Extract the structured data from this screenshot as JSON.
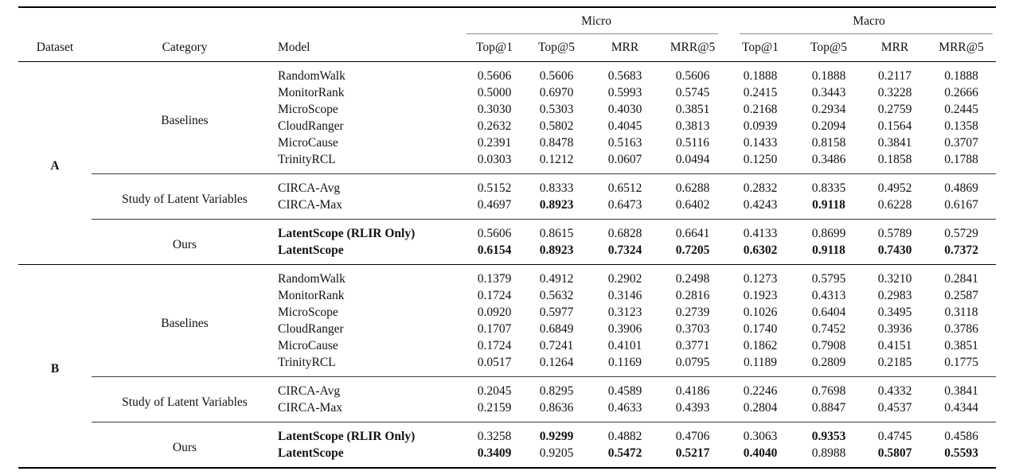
{
  "table": {
    "header": {
      "dataset": "Dataset",
      "category": "Category",
      "model": "Model",
      "groups": [
        {
          "label": "Micro",
          "metrics": [
            "Top@1",
            "Top@5",
            "MRR",
            "MRR@5"
          ]
        },
        {
          "label": "Macro",
          "metrics": [
            "Top@1",
            "Top@5",
            "MRR",
            "MRR@5"
          ]
        }
      ]
    },
    "datasets": [
      {
        "name": "A",
        "groups": [
          {
            "category": "Baselines",
            "rows": [
              {
                "model": "RandomWalk",
                "bold_model": false,
                "values": [
                  "0.5606",
                  "0.5606",
                  "0.5683",
                  "0.5606",
                  "0.1888",
                  "0.1888",
                  "0.2117",
                  "0.1888"
                ],
                "bold": [
                  false,
                  false,
                  false,
                  false,
                  false,
                  false,
                  false,
                  false
                ]
              },
              {
                "model": "MonitorRank",
                "bold_model": false,
                "values": [
                  "0.5000",
                  "0.6970",
                  "0.5993",
                  "0.5745",
                  "0.2415",
                  "0.3443",
                  "0.3228",
                  "0.2666"
                ],
                "bold": [
                  false,
                  false,
                  false,
                  false,
                  false,
                  false,
                  false,
                  false
                ]
              },
              {
                "model": "MicroScope",
                "bold_model": false,
                "values": [
                  "0.3030",
                  "0.5303",
                  "0.4030",
                  "0.3851",
                  "0.2168",
                  "0.2934",
                  "0.2759",
                  "0.2445"
                ],
                "bold": [
                  false,
                  false,
                  false,
                  false,
                  false,
                  false,
                  false,
                  false
                ]
              },
              {
                "model": "CloudRanger",
                "bold_model": false,
                "values": [
                  "0.2632",
                  "0.5802",
                  "0.4045",
                  "0.3813",
                  "0.0939",
                  "0.2094",
                  "0.1564",
                  "0.1358"
                ],
                "bold": [
                  false,
                  false,
                  false,
                  false,
                  false,
                  false,
                  false,
                  false
                ]
              },
              {
                "model": "MicroCause",
                "bold_model": false,
                "values": [
                  "0.2391",
                  "0.8478",
                  "0.5163",
                  "0.5116",
                  "0.1433",
                  "0.8158",
                  "0.3841",
                  "0.3707"
                ],
                "bold": [
                  false,
                  false,
                  false,
                  false,
                  false,
                  false,
                  false,
                  false
                ]
              },
              {
                "model": "TrinityRCL",
                "bold_model": false,
                "values": [
                  "0.0303",
                  "0.1212",
                  "0.0607",
                  "0.0494",
                  "0.1250",
                  "0.3486",
                  "0.1858",
                  "0.1788"
                ],
                "bold": [
                  false,
                  false,
                  false,
                  false,
                  false,
                  false,
                  false,
                  false
                ]
              }
            ]
          },
          {
            "category": "Study of Latent Variables",
            "rows": [
              {
                "model": "CIRCA-Avg",
                "bold_model": false,
                "values": [
                  "0.5152",
                  "0.8333",
                  "0.6512",
                  "0.6288",
                  "0.2832",
                  "0.8335",
                  "0.4952",
                  "0.4869"
                ],
                "bold": [
                  false,
                  false,
                  false,
                  false,
                  false,
                  false,
                  false,
                  false
                ]
              },
              {
                "model": "CIRCA-Max",
                "bold_model": false,
                "values": [
                  "0.4697",
                  "0.8923",
                  "0.6473",
                  "0.6402",
                  "0.4243",
                  "0.9118",
                  "0.6228",
                  "0.6167"
                ],
                "bold": [
                  false,
                  true,
                  false,
                  false,
                  false,
                  true,
                  false,
                  false
                ]
              }
            ]
          },
          {
            "category": "Ours",
            "rows": [
              {
                "model": "LatentScope (RLIR Only)",
                "bold_model": true,
                "values": [
                  "0.5606",
                  "0.8615",
                  "0.6828",
                  "0.6641",
                  "0.4133",
                  "0.8699",
                  "0.5789",
                  "0.5729"
                ],
                "bold": [
                  false,
                  false,
                  false,
                  false,
                  false,
                  false,
                  false,
                  false
                ]
              },
              {
                "model": "LatentScope",
                "bold_model": true,
                "values": [
                  "0.6154",
                  "0.8923",
                  "0.7324",
                  "0.7205",
                  "0.6302",
                  "0.9118",
                  "0.7430",
                  "0.7372"
                ],
                "bold": [
                  true,
                  true,
                  true,
                  true,
                  true,
                  true,
                  true,
                  true
                ]
              }
            ]
          }
        ]
      },
      {
        "name": "B",
        "groups": [
          {
            "category": "Baselines",
            "rows": [
              {
                "model": "RandomWalk",
                "bold_model": false,
                "values": [
                  "0.1379",
                  "0.4912",
                  "0.2902",
                  "0.2498",
                  "0.1273",
                  "0.5795",
                  "0.3210",
                  "0.2841"
                ],
                "bold": [
                  false,
                  false,
                  false,
                  false,
                  false,
                  false,
                  false,
                  false
                ]
              },
              {
                "model": "MonitorRank",
                "bold_model": false,
                "values": [
                  "0.1724",
                  "0.5632",
                  "0.3146",
                  "0.2816",
                  "0.1923",
                  "0.4313",
                  "0.2983",
                  "0.2587"
                ],
                "bold": [
                  false,
                  false,
                  false,
                  false,
                  false,
                  false,
                  false,
                  false
                ]
              },
              {
                "model": "MicroScope",
                "bold_model": false,
                "values": [
                  "0.0920",
                  "0.5977",
                  "0.3123",
                  "0.2739",
                  "0.1026",
                  "0.6404",
                  "0.3495",
                  "0.3118"
                ],
                "bold": [
                  false,
                  false,
                  false,
                  false,
                  false,
                  false,
                  false,
                  false
                ]
              },
              {
                "model": "CloudRanger",
                "bold_model": false,
                "values": [
                  "0.1707",
                  "0.6849",
                  "0.3906",
                  "0.3703",
                  "0.1740",
                  "0.7452",
                  "0.3936",
                  "0.3786"
                ],
                "bold": [
                  false,
                  false,
                  false,
                  false,
                  false,
                  false,
                  false,
                  false
                ]
              },
              {
                "model": "MicroCause",
                "bold_model": false,
                "values": [
                  "0.1724",
                  "0.7241",
                  "0.4101",
                  "0.3771",
                  "0.1862",
                  "0.7908",
                  "0.4151",
                  "0.3851"
                ],
                "bold": [
                  false,
                  false,
                  false,
                  false,
                  false,
                  false,
                  false,
                  false
                ]
              },
              {
                "model": "TrinityRCL",
                "bold_model": false,
                "values": [
                  "0.0517",
                  "0.1264",
                  "0.1169",
                  "0.0795",
                  "0.1189",
                  "0.2809",
                  "0.2185",
                  "0.1775"
                ],
                "bold": [
                  false,
                  false,
                  false,
                  false,
                  false,
                  false,
                  false,
                  false
                ]
              }
            ]
          },
          {
            "category": "Study of Latent Variables",
            "rows": [
              {
                "model": "CIRCA-Avg",
                "bold_model": false,
                "values": [
                  "0.2045",
                  "0.8295",
                  "0.4589",
                  "0.4186",
                  "0.2246",
                  "0.7698",
                  "0.4332",
                  "0.3841"
                ],
                "bold": [
                  false,
                  false,
                  false,
                  false,
                  false,
                  false,
                  false,
                  false
                ]
              },
              {
                "model": "CIRCA-Max",
                "bold_model": false,
                "values": [
                  "0.2159",
                  "0.8636",
                  "0.4633",
                  "0.4393",
                  "0.2804",
                  "0.8847",
                  "0.4537",
                  "0.4344"
                ],
                "bold": [
                  false,
                  false,
                  false,
                  false,
                  false,
                  false,
                  false,
                  false
                ]
              }
            ]
          },
          {
            "category": "Ours",
            "rows": [
              {
                "model": "LatentScope (RLIR Only)",
                "bold_model": true,
                "values": [
                  "0.3258",
                  "0.9299",
                  "0.4882",
                  "0.4706",
                  "0.3063",
                  "0.9353",
                  "0.4745",
                  "0.4586"
                ],
                "bold": [
                  false,
                  true,
                  false,
                  false,
                  false,
                  true,
                  false,
                  false
                ]
              },
              {
                "model": "LatentScope",
                "bold_model": true,
                "values": [
                  "0.3409",
                  "0.9205",
                  "0.5472",
                  "0.5217",
                  "0.4040",
                  "0.8988",
                  "0.5807",
                  "0.5593"
                ],
                "bold": [
                  true,
                  false,
                  true,
                  true,
                  true,
                  false,
                  true,
                  true
                ]
              }
            ]
          }
        ]
      }
    ]
  }
}
